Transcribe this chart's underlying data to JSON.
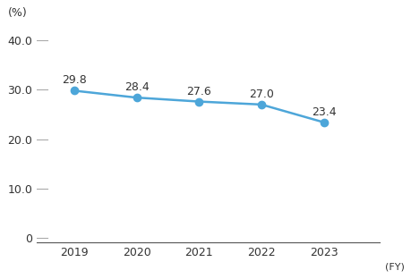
{
  "years": [
    2019,
    2020,
    2021,
    2022,
    2023
  ],
  "values": [
    29.8,
    28.4,
    27.6,
    27.0,
    23.4
  ],
  "line_color": "#4da6d9",
  "marker_color": "#4da6d9",
  "pct_label": "(%)",
  "fy_label": "(FY)",
  "yticks": [
    0,
    10.0,
    20.0,
    30.0,
    40.0
  ],
  "ylim": [
    -1,
    43
  ],
  "xlim": [
    2018.4,
    2023.9
  ],
  "marker_size": 6,
  "line_width": 1.8,
  "tick_fontsize": 9,
  "unit_fontsize": 9,
  "data_label_fontsize": 9,
  "fy_fontsize": 8,
  "background_color": "#ffffff",
  "text_color": "#333333",
  "tick_line_color": "#aaaaaa",
  "bottom_spine_color": "#555555"
}
